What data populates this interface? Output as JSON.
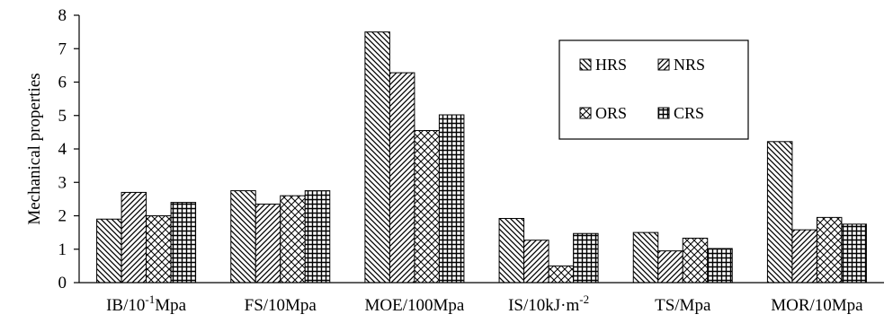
{
  "chart_data": {
    "type": "bar",
    "ylabel": "Mechanical properties",
    "xlabel": "",
    "ylim": [
      0,
      8
    ],
    "yticks": [
      0,
      1,
      2,
      3,
      4,
      5,
      6,
      7,
      8
    ],
    "grid": false,
    "legend_position": "upper-right",
    "categories": [
      {
        "main": "IB/10",
        "sup": "-1",
        "tail": "Mpa"
      },
      {
        "main": "FS/10Mpa",
        "sup": "",
        "tail": ""
      },
      {
        "main": "MOE/100Mpa",
        "sup": "",
        "tail": ""
      },
      {
        "main": "IS/10kJ·m",
        "sup": "-2",
        "tail": ""
      },
      {
        "main": "TS/Mpa",
        "sup": "",
        "tail": ""
      },
      {
        "main": "MOR/10Mpa",
        "sup": "",
        "tail": ""
      }
    ],
    "series": [
      {
        "name": "HRS",
        "pattern": "diag-back",
        "values": [
          1.9,
          2.75,
          7.5,
          1.92,
          1.5,
          4.22
        ]
      },
      {
        "name": "NRS",
        "pattern": "diag-fwd",
        "values": [
          2.7,
          2.35,
          6.28,
          1.27,
          0.95,
          1.58
        ]
      },
      {
        "name": "ORS",
        "pattern": "crosshatch",
        "values": [
          2.0,
          2.6,
          4.55,
          0.5,
          1.33,
          1.95
        ]
      },
      {
        "name": "CRS",
        "pattern": "grid",
        "values": [
          2.4,
          2.75,
          5.02,
          1.47,
          1.02,
          1.75
        ]
      }
    ]
  }
}
